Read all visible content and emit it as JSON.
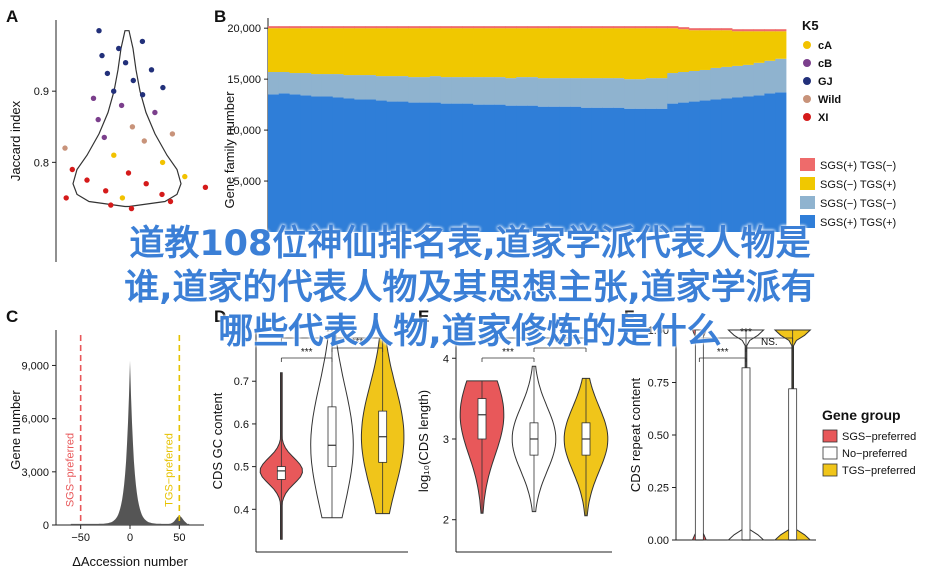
{
  "panels": {
    "A": "A",
    "B": "B",
    "C": "C",
    "D": "D",
    "E": "E",
    "F": "F"
  },
  "overlay_title": [
    "道教108位神仙排名表,道家学派代表人物是",
    "谁,道家的代表人物及其思想主张,道家学派有",
    "哪些代表人物,道家修炼的是什么"
  ],
  "colors": {
    "K5": {
      "cA": "#f2c200",
      "cB": "#7b3f8c",
      "GJ": "#22307a",
      "Wild": "#c8937a",
      "XI": "#d51a1a"
    },
    "B_fill": {
      "sgs_tgs_minus": "#ee6b6b",
      "sgs_minus_tgs_plus": "#f0c800",
      "sgs_minus_tgs_minus": "#8fb3cf",
      "sgs_plus_tgs_plus": "#2f7ed8"
    },
    "group": {
      "SGS": "#e8585a",
      "No": "#ffffff",
      "TGS": "#f0c51a"
    }
  },
  "chart_data": [
    {
      "panel": "A",
      "type": "scatter",
      "ylabel": "Jaccard index",
      "yticks": [
        "0.8",
        "0.9"
      ],
      "ylim": [
        0.66,
        1.0
      ],
      "legend_title": "K5",
      "legend": [
        "cA",
        "cB",
        "GJ",
        "Wild",
        "XI"
      ],
      "points": [
        {
          "g": "GJ",
          "y": 0.985
        },
        {
          "g": "GJ",
          "y": 0.96
        },
        {
          "g": "GJ",
          "y": 0.97
        },
        {
          "g": "GJ",
          "y": 0.95
        },
        {
          "g": "GJ",
          "y": 0.94
        },
        {
          "g": "GJ",
          "y": 0.93
        },
        {
          "g": "GJ",
          "y": 0.925
        },
        {
          "g": "GJ",
          "y": 0.915
        },
        {
          "g": "GJ",
          "y": 0.905
        },
        {
          "g": "GJ",
          "y": 0.9
        },
        {
          "g": "GJ",
          "y": 0.895
        },
        {
          "g": "cB",
          "y": 0.89
        },
        {
          "g": "cB",
          "y": 0.88
        },
        {
          "g": "cB",
          "y": 0.87
        },
        {
          "g": "cB",
          "y": 0.86
        },
        {
          "g": "Wild",
          "y": 0.85
        },
        {
          "g": "Wild",
          "y": 0.84
        },
        {
          "g": "cB",
          "y": 0.835
        },
        {
          "g": "Wild",
          "y": 0.83
        },
        {
          "g": "Wild",
          "y": 0.82
        },
        {
          "g": "cA",
          "y": 0.81
        },
        {
          "g": "cA",
          "y": 0.8
        },
        {
          "g": "XI",
          "y": 0.79
        },
        {
          "g": "XI",
          "y": 0.785
        },
        {
          "g": "cA",
          "y": 0.78
        },
        {
          "g": "XI",
          "y": 0.775
        },
        {
          "g": "XI",
          "y": 0.77
        },
        {
          "g": "XI",
          "y": 0.765
        },
        {
          "g": "XI",
          "y": 0.76
        },
        {
          "g": "XI",
          "y": 0.755
        },
        {
          "g": "XI",
          "y": 0.75
        },
        {
          "g": "cA",
          "y": 0.75
        },
        {
          "g": "XI",
          "y": 0.745
        },
        {
          "g": "XI",
          "y": 0.74
        },
        {
          "g": "XI",
          "y": 0.735
        }
      ]
    },
    {
      "panel": "B",
      "type": "bar",
      "ylabel": "Gene family number",
      "yticks": [
        "5,000",
        "10,000",
        "15,000",
        "20,000"
      ],
      "ylim": [
        0,
        21000
      ],
      "legend": [
        "SGS(+) TGS(−)",
        "SGS(−) TGS(+)",
        "SGS(−) TGS(−)",
        "SGS(+) TGS(+)"
      ],
      "series": [
        {
          "key": "sgs_plus_tgs_plus",
          "values": [
            13500,
            13600,
            13500,
            13400,
            13300,
            13300,
            13200,
            13100,
            13000,
            13000,
            12900,
            12800,
            12800,
            12700,
            12700,
            12700,
            12600,
            12600,
            12600,
            12500,
            12500,
            12500,
            12400,
            12400,
            12400,
            12300,
            12300,
            12300,
            12300,
            12200,
            12200,
            12200,
            12200,
            12100,
            12100,
            12100,
            12100,
            12600,
            12700,
            12800,
            12900,
            13000,
            13100,
            13200,
            13300,
            13400,
            13600,
            13700
          ]
        },
        {
          "key": "sgs_minus_tgs_minus",
          "values": [
            2200,
            2100,
            2100,
            2200,
            2200,
            2200,
            2300,
            2300,
            2400,
            2400,
            2400,
            2500,
            2500,
            2500,
            2500,
            2600,
            2600,
            2600,
            2600,
            2700,
            2700,
            2700,
            2700,
            2800,
            2800,
            2800,
            2800,
            2800,
            2800,
            2900,
            2900,
            2900,
            2900,
            2900,
            2900,
            3000,
            3000,
            3000,
            3000,
            3000,
            3000,
            3100,
            3100,
            3100,
            3100,
            3200,
            3200,
            3300
          ]
        },
        {
          "key": "sgs_minus_tgs_plus",
          "values": [
            4300,
            4300,
            4400,
            4400,
            4500,
            4500,
            4500,
            4600,
            4600,
            4600,
            4700,
            4700,
            4700,
            4800,
            4800,
            4700,
            4800,
            4800,
            4800,
            4800,
            4800,
            4800,
            4900,
            4800,
            4800,
            4900,
            4900,
            4900,
            4900,
            4900,
            4900,
            4900,
            4900,
            5000,
            5000,
            4900,
            4900,
            4400,
            4200,
            4000,
            3900,
            3700,
            3600,
            3400,
            3300,
            3100,
            2900,
            2700
          ]
        },
        {
          "key": "sgs_tgs_minus",
          "values": [
            200,
            200,
            200,
            200,
            200,
            200,
            200,
            200,
            200,
            200,
            200,
            200,
            200,
            200,
            200,
            200,
            200,
            200,
            200,
            200,
            200,
            200,
            200,
            200,
            200,
            200,
            200,
            200,
            200,
            200,
            200,
            200,
            200,
            200,
            200,
            200,
            200,
            200,
            200,
            200,
            200,
            200,
            200,
            200,
            200,
            200,
            200,
            200
          ]
        }
      ]
    },
    {
      "panel": "C",
      "type": "area",
      "xlabel": "ΔAccession number",
      "ylabel": "Gene number",
      "xticks": [
        "−50",
        "0",
        "50"
      ],
      "xlim": [
        -75,
        75
      ],
      "yticks": [
        "0",
        "3,000",
        "6,000",
        "9,000"
      ],
      "ylim": [
        0,
        11000
      ],
      "vlines": [
        {
          "x": -50,
          "label": "SGS−preferred"
        },
        {
          "x": 50,
          "label": "TGS−preferred"
        }
      ]
    },
    {
      "panel": "D",
      "type": "violin",
      "ylabel": "CDS GC content",
      "yticks": [
        "0.4",
        "0.5",
        "0.6",
        "0.7"
      ],
      "ylim": [
        0.3,
        0.82
      ],
      "groups": [
        {
          "g": "SGS",
          "min": 0.33,
          "q1": 0.47,
          "median": 0.49,
          "q3": 0.5,
          "max": 0.72
        },
        {
          "g": "No",
          "min": 0.38,
          "q1": 0.5,
          "median": 0.55,
          "q3": 0.64,
          "max": 0.81
        },
        {
          "g": "TGS",
          "min": 0.39,
          "q1": 0.51,
          "median": 0.57,
          "q3": 0.63,
          "max": 0.8
        }
      ],
      "sig": [
        "***",
        "***",
        "***"
      ]
    },
    {
      "panel": "E",
      "type": "violin",
      "ylabel": "log₁₀(CDS length)",
      "yticks": [
        "2",
        "3",
        "4"
      ],
      "ylim": [
        1.6,
        4.35
      ],
      "groups": [
        {
          "g": "SGS",
          "min": 2.08,
          "q1": 3.0,
          "median": 3.3,
          "q3": 3.5,
          "max": 3.72
        },
        {
          "g": "No",
          "min": 2.1,
          "q1": 2.8,
          "median": 3.0,
          "q3": 3.2,
          "max": 3.9
        },
        {
          "g": "TGS",
          "min": 2.05,
          "q1": 2.8,
          "median": 3.0,
          "q3": 3.2,
          "max": 3.75
        }
      ],
      "sig": [
        "***",
        "***",
        "***"
      ]
    },
    {
      "panel": "F",
      "type": "violin",
      "ylabel": "CDS repeat content",
      "yticks": [
        "0.00",
        "0.25",
        "0.50",
        "0.75",
        "1.00"
      ],
      "ylim": [
        0,
        1.0
      ],
      "groups": [
        {
          "g": "SGS",
          "min": 0.0,
          "q1": 0.0,
          "median": 0.0,
          "q3": 1.0,
          "max": 1.0
        },
        {
          "g": "No",
          "min": 0.0,
          "q1": 0.0,
          "median": 0.0,
          "q3": 0.82,
          "max": 1.0
        },
        {
          "g": "TGS",
          "min": 0.0,
          "q1": 0.0,
          "median": 0.0,
          "q3": 0.72,
          "max": 1.0
        }
      ],
      "sig": [
        "***",
        "***",
        "NS."
      ],
      "legend_title": "Gene group",
      "legend": [
        "SGS−preferred",
        "No−preferred",
        "TGS−preferred"
      ]
    }
  ]
}
